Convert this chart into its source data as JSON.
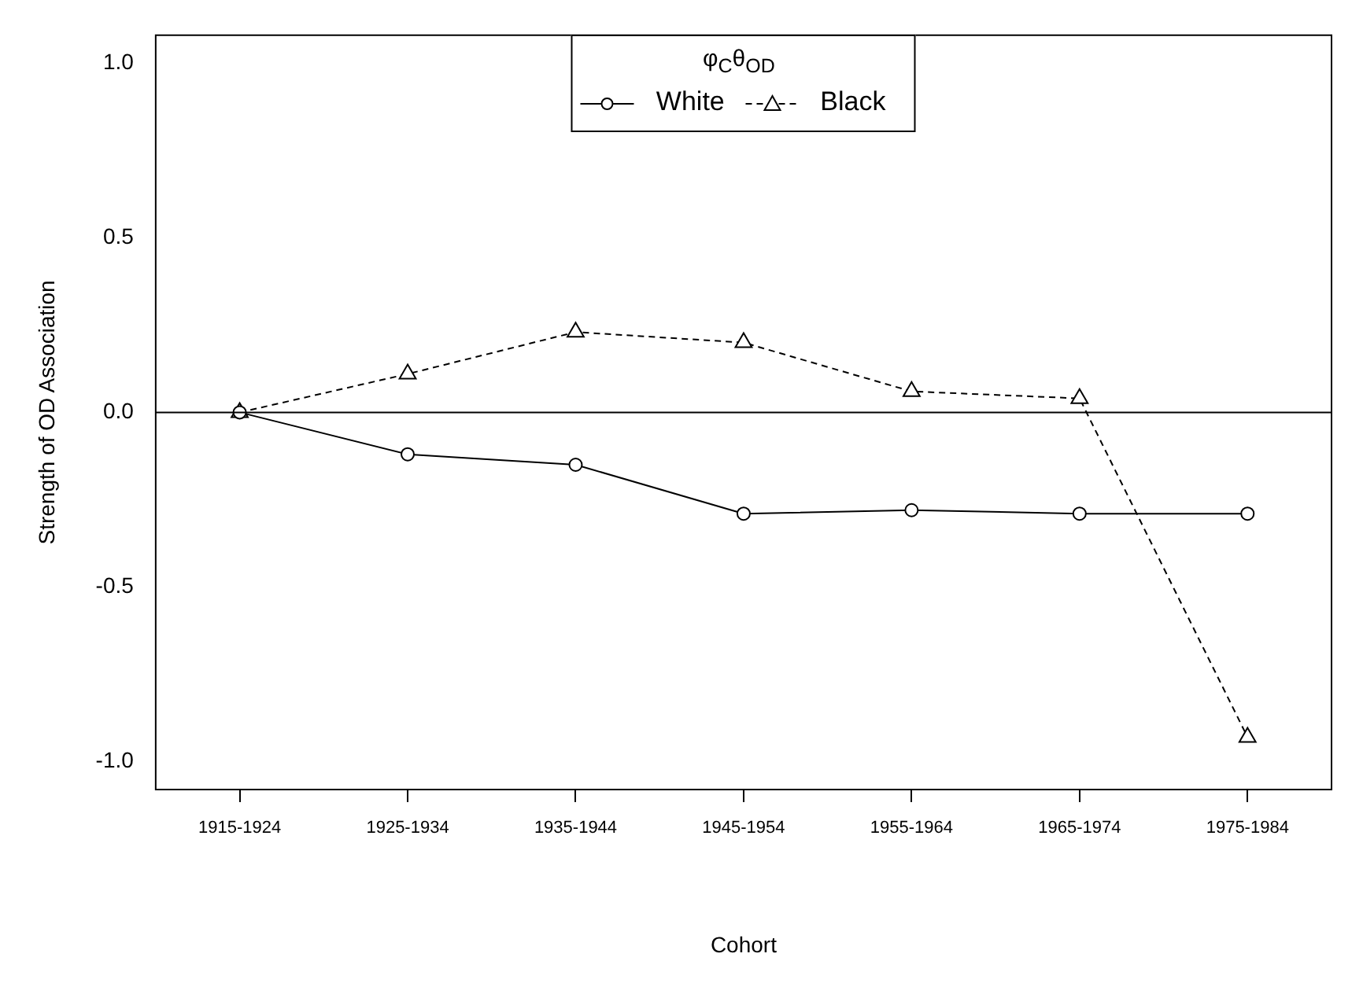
{
  "chart_data": {
    "type": "line",
    "xlabel": "Cohort",
    "ylabel": "Strength of OD Association",
    "legend_title": "φ$_{C}$θ$_{OD}$",
    "legend": "top",
    "categories": [
      "1915-1924",
      "1925-1934",
      "1935-1944",
      "1945-1954",
      "1955-1964",
      "1965-1974",
      "1975-1984"
    ],
    "ylim": [
      -1.08,
      1.08
    ],
    "yticks": [
      {
        "value": -1,
        "label": "-1.0"
      },
      {
        "value": -0.5,
        "label": "-0.5"
      },
      {
        "value": 0,
        "label": "0.0"
      },
      {
        "value": 0.5,
        "label": "0.5"
      },
      {
        "value": 1,
        "label": "1.0"
      }
    ],
    "series": [
      {
        "name": "White",
        "color": "#000000",
        "marker": "circle",
        "line_style": "solid",
        "values": [
          0,
          -0.12,
          -0.15,
          -0.29,
          -0.28,
          -0.29,
          -0.29
        ]
      },
      {
        "name": "Black",
        "color": "#000000",
        "marker": "triangle",
        "line_style": "dashed",
        "values": [
          0,
          0.11,
          0.23,
          0.2,
          0.06,
          0.04,
          -0.93
        ]
      }
    ],
    "ref_lines": [
      {
        "axis": "y",
        "value": 0,
        "color": "#000000"
      }
    ]
  }
}
